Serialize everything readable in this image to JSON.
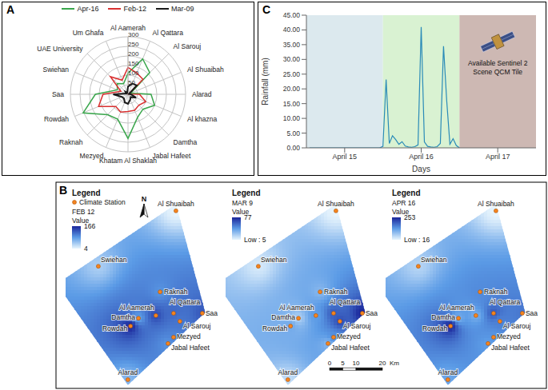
{
  "chart_data": [
    {
      "panel": "A",
      "type": "radar",
      "legend": "top",
      "grid": true,
      "categories": [
        "Al Aamerah",
        "Al Qattara",
        "Al Sarouj",
        "Al Shuaibah",
        "Alarad",
        "Al khazna",
        "Damtha",
        "Jabal Hafeet",
        "Khatam Al Shaklah",
        "Mezyed",
        "Raknah",
        "Rowdah",
        "Saa",
        "Swiehan",
        "UAE University",
        "Um Ghafa"
      ],
      "series": [
        {
          "name": "Apr-16",
          "color": "#3aa64c",
          "values": [
            110,
            200,
            160,
            16,
            120,
            150,
            110,
            130,
            230,
            140,
            150,
            253,
            170,
            60,
            80,
            60
          ]
        },
        {
          "name": "Feb-12",
          "color": "#d93030",
          "values": [
            140,
            120,
            110,
            4,
            60,
            100,
            80,
            90,
            90,
            100,
            90,
            166,
            130,
            40,
            130,
            80
          ]
        },
        {
          "name": "Mar-09",
          "color": "#1a1a1a",
          "values": [
            40,
            60,
            65,
            5,
            15,
            45,
            20,
            30,
            50,
            45,
            30,
            35,
            77,
            10,
            20,
            10
          ]
        }
      ],
      "ylim": [
        0,
        300
      ],
      "yticks": [
        50,
        100,
        150,
        200,
        250,
        300
      ]
    },
    {
      "panel": "B",
      "type": "map",
      "extent_km": [
        [
          42.4,
          68
        ],
        [
          53.5,
          27
        ],
        [
          24.2,
          -0.5
        ],
        [
          0.6,
          33
        ],
        [
          0.6,
          40
        ]
      ],
      "stations": [
        {
          "name": "Al Shuaibah",
          "x_km": 42.4,
          "y_km": 65.5
        },
        {
          "name": "Swiehan",
          "x_km": 13,
          "y_km": 44.5
        },
        {
          "name": "Raknah",
          "x_km": 36.4,
          "y_km": 34.8
        },
        {
          "name": "Al Aamerah",
          "x_km": 34.8,
          "y_km": 25.8
        },
        {
          "name": "Al Qattara",
          "x_km": 41.5,
          "y_km": 26.7
        },
        {
          "name": "Al Sarouj",
          "x_km": 43.9,
          "y_km": 23.6
        },
        {
          "name": "Damtha",
          "x_km": 28.2,
          "y_km": 24.8
        },
        {
          "name": "Rowdah",
          "x_km": 25.2,
          "y_km": 21.8
        },
        {
          "name": "Saa",
          "x_km": 52.4,
          "y_km": 26.7
        },
        {
          "name": "Mezyed",
          "x_km": 41.5,
          "y_km": 17.6
        },
        {
          "name": "Jabal Hafeet",
          "x_km": 39.4,
          "y_km": 15.2
        },
        {
          "name": "Alarad",
          "x_km": 24.2,
          "y_km": 1.5
        }
      ],
      "maps": [
        {
          "legend_title": "Legend",
          "station_legend": "Climate Station",
          "north_arrow": "N",
          "title": "FEB 12",
          "value_label": "Value",
          "values": [
            4,
            40,
            90,
            140,
            120,
            110,
            80,
            166,
            130,
            100,
            90,
            60
          ],
          "colorbar": {
            "range": [
              4,
              166
            ],
            "ticks": [
              166,
              4
            ],
            "colors": [
              "#e8f5fd",
              "#5b9be6",
              "#1a259a"
            ]
          }
        },
        {
          "legend_title": "Legend",
          "title": "MAR 9",
          "value_label": "Value",
          "values": [
            5,
            10,
            30,
            40,
            60,
            65,
            20,
            35,
            77,
            45,
            30,
            15
          ],
          "colorbar": {
            "range": [
              5,
              77
            ],
            "ticks": [
              77,
              {
                "value": 5,
                "label": "Low : 5"
              }
            ],
            "colors": [
              "#e8f5fd",
              "#5b9be6",
              "#1a259a"
            ]
          },
          "scale_bar": {
            "ticks": [
              0,
              5,
              10,
              20
            ],
            "unit": "Km"
          }
        },
        {
          "legend_title": "Legend",
          "title": "APR 16",
          "value_label": "Value",
          "values": [
            16,
            60,
            150,
            110,
            200,
            160,
            110,
            253,
            170,
            140,
            130,
            120
          ],
          "colorbar": {
            "range": [
              16,
              253
            ],
            "ticks": [
              253,
              {
                "value": 16,
                "label": "Low : 16"
              }
            ],
            "colors": [
              "#e8f5fd",
              "#5b9be6",
              "#1a259a"
            ]
          }
        }
      ]
    },
    {
      "panel": "C",
      "type": "line",
      "x_label": "Days",
      "y_label": "Rainfall (mm)",
      "color": "#2a8bb8",
      "grid": false,
      "xlim": [
        0,
        72
      ],
      "xticks": [
        {
          "value": 12,
          "label": "April 15"
        },
        {
          "value": 36,
          "label": "April 16"
        },
        {
          "value": 60,
          "label": "April 17"
        }
      ],
      "ylim": [
        0,
        45
      ],
      "yticks": [
        {
          "value": 0,
          "label": "0.00"
        },
        {
          "value": 5,
          "label": "5.00"
        },
        {
          "value": 10,
          "label": "10.00"
        },
        {
          "value": 15,
          "label": "15.00"
        },
        {
          "value": 20,
          "label": "20.00"
        },
        {
          "value": 25,
          "label": "25.00"
        },
        {
          "value": 30,
          "label": "30.00"
        },
        {
          "value": 35,
          "label": "35.00"
        },
        {
          "value": 40,
          "label": "40.00"
        },
        {
          "value": 45,
          "label": "45.00"
        }
      ],
      "x": [
        1,
        2,
        3,
        4,
        5,
        6,
        7,
        8,
        9,
        10,
        11,
        12,
        13,
        14,
        15,
        16,
        17,
        18,
        19,
        20,
        21,
        22,
        23,
        24,
        25,
        26,
        27,
        28,
        29,
        30,
        31,
        32,
        33,
        34,
        35,
        36,
        37,
        38,
        39,
        40,
        41,
        42,
        43,
        44,
        45,
        46,
        47,
        48
      ],
      "values": [
        0,
        0,
        0,
        0,
        0,
        0,
        0,
        0,
        0,
        0,
        0,
        0,
        0,
        0,
        0,
        0,
        0,
        0,
        0,
        0,
        0,
        0,
        0,
        0.5,
        23.2,
        1.5,
        4.1,
        2.8,
        1.2,
        2.1,
        0.6,
        0.3,
        0.2,
        0.4,
        1,
        41,
        2,
        0.5,
        0.3,
        0.2,
        0.4,
        1.5,
        34.5,
        16,
        1.2,
        3.1,
        0.8,
        0
      ],
      "shaded_ranges": [
        {
          "range": [
            0,
            24
          ],
          "color": "#dce9ee"
        },
        {
          "range": [
            24,
            48
          ],
          "color": "#d9f2d2"
        },
        {
          "range": [
            48,
            72
          ],
          "color": "#cdb8b3",
          "annotation": "Available Sentinel 2 Scene QCM Tile"
        }
      ]
    }
  ]
}
